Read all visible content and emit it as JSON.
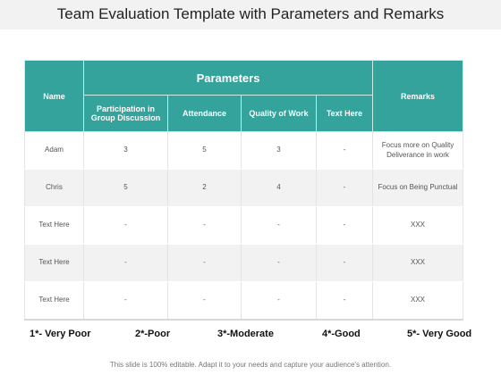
{
  "title": "Team Evaluation Template with Parameters and Remarks",
  "header": {
    "name": "Name",
    "parameters": "Parameters",
    "remarks": "Remarks",
    "columns": [
      "Participation in Group Discussion",
      "Attendance",
      "Quality  of Work",
      "Text Here"
    ]
  },
  "rows": [
    {
      "name": "Adam",
      "values": [
        "3",
        "5",
        "3",
        "-"
      ],
      "remark": "Focus more on Quality Deliverance in work"
    },
    {
      "name": "Chris",
      "values": [
        "5",
        "2",
        "4",
        "-"
      ],
      "remark": "Focus on Being Punctual"
    },
    {
      "name": "Text Here",
      "values": [
        "-",
        "-",
        "-",
        "-"
      ],
      "remark": "XXX"
    },
    {
      "name": "Text Here",
      "values": [
        "-",
        "-",
        "-",
        "-"
      ],
      "remark": "XXX"
    },
    {
      "name": "Text Here",
      "values": [
        "-",
        "-",
        "-",
        "-"
      ],
      "remark": "XXX"
    }
  ],
  "legend": [
    "1*- Very Poor",
    "2*-Poor",
    "3*-Moderate",
    "4*-Good",
    "5*- Very Good"
  ],
  "footer": "This slide is 100% editable. Adapt it to your needs and capture your audience's attention.",
  "colors": {
    "header": "#33a39b",
    "alt_row": "#f2f2f2"
  }
}
